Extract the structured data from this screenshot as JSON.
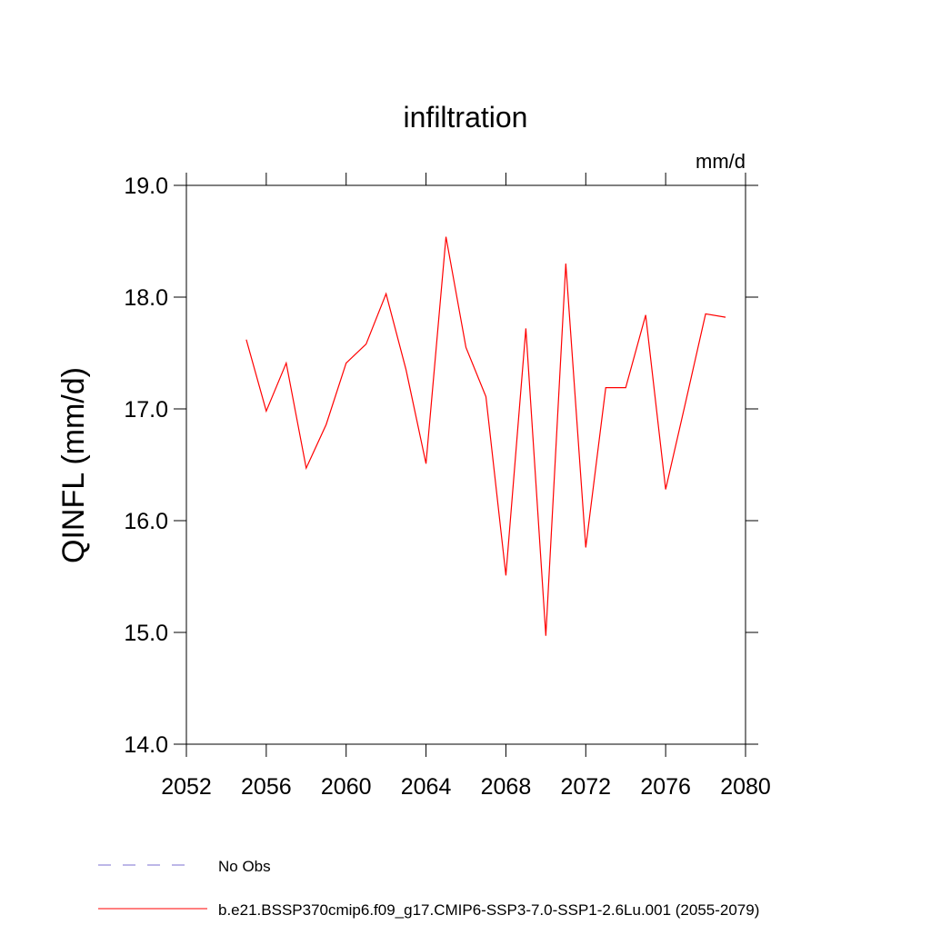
{
  "chart_data": {
    "type": "line",
    "title": "infiltration",
    "units": "mm/d",
    "y_label": "QINFL  (mm/d)",
    "x": [
      2055,
      2056,
      2057,
      2058,
      2059,
      2060,
      2061,
      2062,
      2063,
      2064,
      2065,
      2066,
      2067,
      2068,
      2069,
      2070,
      2071,
      2072,
      2073,
      2074,
      2075,
      2076,
      2077,
      2078,
      2079
    ],
    "series": [
      {
        "name": "No Obs",
        "color": "#7b6fd0",
        "dash": true,
        "values": [
          null,
          null,
          null,
          null,
          null,
          null,
          null,
          null,
          null,
          null,
          null,
          null,
          null,
          null,
          null,
          null,
          null,
          null,
          null,
          null,
          null,
          null,
          null,
          null,
          null
        ]
      },
      {
        "name": "b.e21.BSSP370cmip6.f09_g17.CMIP6-SSP3-7.0-SSP1-2.6Lu.001 (2055-2079)",
        "color": "#ff0000",
        "dash": false,
        "values": [
          17.62,
          16.98,
          17.41,
          16.47,
          16.86,
          17.41,
          17.58,
          18.03,
          17.35,
          16.51,
          18.54,
          17.55,
          17.11,
          15.51,
          17.72,
          14.97,
          18.3,
          15.76,
          17.19,
          17.19,
          17.84,
          16.28,
          17.06,
          17.85,
          17.82
        ]
      }
    ],
    "xlim": [
      2052,
      2080
    ],
    "xticks": [
      2052,
      2056,
      2060,
      2064,
      2068,
      2072,
      2076,
      2080
    ],
    "ylim": [
      14,
      19
    ],
    "yticks": [
      {
        "value": 14,
        "label": "14.0"
      },
      {
        "value": 15,
        "label": "15.0"
      },
      {
        "value": 16,
        "label": "16.0"
      },
      {
        "value": 17,
        "label": "17.0"
      },
      {
        "value": 18,
        "label": "18.0"
      },
      {
        "value": 19,
        "label": "19.0"
      }
    ]
  }
}
